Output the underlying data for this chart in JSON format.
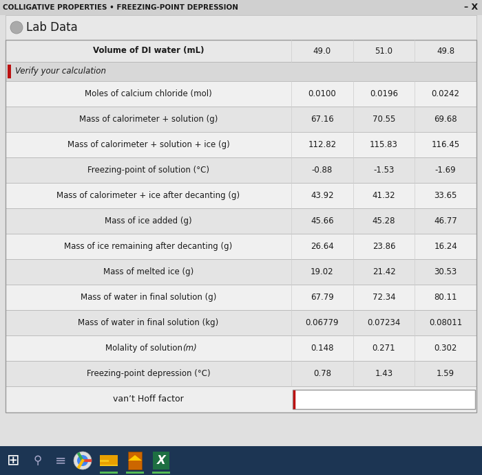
{
  "title": "COLLIGATIVE PROPERTIES • FREEZING-POINT DEPRESSION",
  "close_button": "– X",
  "section1": "Lab Data",
  "section2": "Verify your calculation",
  "rows": [
    {
      "label": "Volume of DI water (mL)",
      "values": [
        "49.0",
        "51.0",
        "49.8"
      ],
      "bold": true,
      "italic": false
    },
    {
      "label": "Moles of calcium chloride (mol)",
      "values": [
        "0.0100",
        "0.0196",
        "0.0242"
      ],
      "bold": false,
      "italic": false
    },
    {
      "label": "Mass of calorimeter + solution (g)",
      "values": [
        "67.16",
        "70.55",
        "69.68"
      ],
      "bold": false,
      "italic": false
    },
    {
      "label": "Mass of calorimeter + solution + ice (g)",
      "values": [
        "112.82",
        "115.83",
        "116.45"
      ],
      "bold": false,
      "italic": false
    },
    {
      "label": "Freezing-point of solution (°C)",
      "values": [
        "-0.88",
        "-1.53",
        "-1.69"
      ],
      "bold": false,
      "italic": false
    },
    {
      "label": "Mass of calorimeter + ice after decanting (g)",
      "values": [
        "43.92",
        "41.32",
        "33.65"
      ],
      "bold": false,
      "italic": false
    },
    {
      "label": "Mass of ice added (g)",
      "values": [
        "45.66",
        "45.28",
        "46.77"
      ],
      "bold": false,
      "italic": false
    },
    {
      "label": "Mass of ice remaining after decanting (g)",
      "values": [
        "26.64",
        "23.86",
        "16.24"
      ],
      "bold": false,
      "italic": false
    },
    {
      "label": "Mass of melted ice (g)",
      "values": [
        "19.02",
        "21.42",
        "30.53"
      ],
      "bold": false,
      "italic": false
    },
    {
      "label": "Mass of water in final solution (g)",
      "values": [
        "67.79",
        "72.34",
        "80.11"
      ],
      "bold": false,
      "italic": false
    },
    {
      "label": "Mass of water in final solution (kg)",
      "values": [
        "0.06779",
        "0.07234",
        "0.08011"
      ],
      "bold": false,
      "italic": false
    },
    {
      "label": "Molality of solution (m)",
      "values": [
        "0.148",
        "0.271",
        "0.302"
      ],
      "bold": false,
      "italic": true
    },
    {
      "label": "Freezing-point depression (°C)",
      "values": [
        "0.78",
        "1.43",
        "1.59"
      ],
      "bold": false,
      "italic": false
    }
  ],
  "vhoff_label": "van’t Hoff factor",
  "bg_title_bar": "#d0d0d0",
  "bg_main": "#e0e0e0",
  "bg_lab_data": "#e8e8e8",
  "bg_vol_row": "#e8e8e8",
  "bg_verify": "#d8d8d8",
  "bg_row_light": "#f0f0f0",
  "bg_row_dark": "#e4e4e4",
  "bg_vhoff": "#eeeeee",
  "bg_input": "#ffffff",
  "red_color": "#bb1111",
  "text_dark": "#1a1a1a",
  "border_color": "#aaaaaa",
  "taskbar_bg": "#1c3553",
  "col_divider": "#cccccc"
}
